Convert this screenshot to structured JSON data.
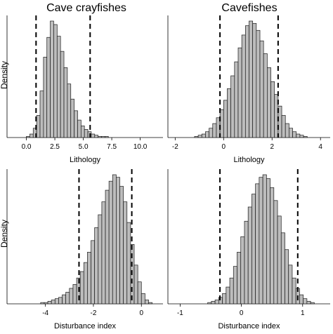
{
  "figure": {
    "column_titles": [
      "Cave crayfishes",
      "Cavefishes"
    ],
    "row_ylabels": [
      "Density",
      "Density"
    ]
  },
  "chart_data": [
    {
      "type": "histogram",
      "group": "Cave crayfishes",
      "xlabel": "Lithology",
      "ylabel": "Density",
      "xlim": [
        -1.7,
        12.0
      ],
      "xticks": [
        0.0,
        2.5,
        5.0,
        7.5,
        10.0
      ],
      "xtick_labels": [
        "0.0",
        "2.5",
        "5.0",
        "7.5",
        "10.0"
      ],
      "bin_start": 0.0,
      "bin_width": 0.3,
      "counts": [
        1,
        3,
        8,
        19,
        40,
        69,
        86,
        100,
        97,
        87,
        74,
        60,
        46,
        33,
        23,
        15,
        10,
        7,
        5,
        3,
        2,
        1,
        1,
        1
      ],
      "vlines": [
        0.85,
        5.6
      ]
    },
    {
      "type": "histogram",
      "group": "Cavefishes",
      "xlabel": "Lithology",
      "ylabel": "",
      "xlim": [
        -2.3,
        4.4
      ],
      "xticks": [
        -2,
        0,
        2,
        4
      ],
      "xtick_labels": [
        "-2",
        "0",
        "2",
        "4"
      ],
      "bin_start": -1.2,
      "bin_width": 0.15,
      "counts": [
        1,
        2,
        3,
        5,
        8,
        12,
        17,
        24,
        32,
        42,
        53,
        65,
        77,
        88,
        96,
        100,
        98,
        92,
        83,
        72,
        60,
        48,
        37,
        27,
        19,
        12,
        8,
        5,
        3,
        2,
        1
      ],
      "vlines": [
        -0.15,
        2.25
      ]
    },
    {
      "type": "histogram",
      "group": "Cave crayfishes",
      "xlabel": "Disturbance index",
      "ylabel": "Density",
      "xlim": [
        -5.6,
        0.9
      ],
      "xticks": [
        -4,
        -2,
        0
      ],
      "xtick_labels": [
        "-4",
        "-2",
        "0"
      ],
      "bin_start": -4.2,
      "bin_width": 0.15,
      "counts": [
        1,
        1,
        2,
        3,
        4,
        5,
        7,
        9,
        12,
        15,
        20,
        25,
        32,
        40,
        49,
        59,
        69,
        79,
        88,
        95,
        100,
        98,
        91,
        79,
        63,
        46,
        30,
        17,
        8,
        3,
        1
      ],
      "vlines": [
        -2.6,
        -0.4
      ]
    },
    {
      "type": "histogram",
      "group": "Cavefishes",
      "xlabel": "Disturbance index",
      "ylabel": "",
      "xlim": [
        -1.2,
        1.45
      ],
      "xticks": [
        -1,
        0,
        1
      ],
      "xtick_labels": [
        "-1",
        "0",
        "1"
      ],
      "bin_start": -0.55,
      "bin_width": 0.06,
      "counts": [
        1,
        2,
        3,
        5,
        8,
        13,
        20,
        29,
        40,
        52,
        64,
        75,
        85,
        93,
        98,
        100,
        97,
        90,
        80,
        68,
        55,
        42,
        30,
        20,
        12,
        7,
        4,
        2,
        1
      ],
      "vlines": [
        -0.35,
        0.92
      ]
    }
  ]
}
